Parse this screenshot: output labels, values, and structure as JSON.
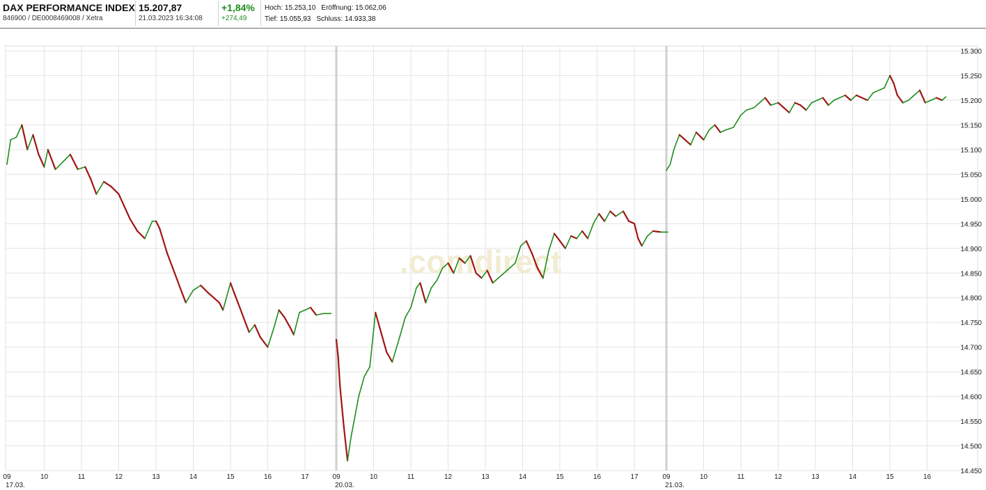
{
  "header": {
    "instrument_name": "DAX PERFORMANCE INDEX",
    "instrument_ids": "846900 / DE0008469008 / Xetra",
    "price": "15.207,87",
    "datetime": "21.03.2023 16:34:08",
    "change_percent": "+1,84%",
    "change_abs": "+274,49",
    "high_label": "Hoch:",
    "high_value": "15.253,10",
    "open_label": "Eröffnung:",
    "open_value": "15.062,06",
    "low_label": "Tief:",
    "low_value": "15.055,93",
    "close_label": "Schluss:",
    "close_value": "14.933,38",
    "positive_color": "#1e8c1e"
  },
  "watermark": ".comdirect",
  "chart_data": {
    "type": "line",
    "subtype": "ohlc-candlestick-intraday",
    "title": "",
    "xlabel": "",
    "ylabel": "",
    "ylim": [
      14450,
      15310
    ],
    "y_ticks": [
      "15.300",
      "15.250",
      "15.200",
      "15.150",
      "15.100",
      "15.050",
      "15.000",
      "14.950",
      "14.900",
      "14.850",
      "14.800",
      "14.750",
      "14.700",
      "14.650",
      "14.600",
      "14.550",
      "14.500",
      "14.450"
    ],
    "y_tick_values": [
      15300,
      15250,
      15200,
      15150,
      15100,
      15050,
      15000,
      14950,
      14900,
      14850,
      14800,
      14750,
      14700,
      14650,
      14600,
      14550,
      14500,
      14450
    ],
    "grid": true,
    "up_color": "#1e8c1e",
    "down_color": "#a01414",
    "sessions": [
      {
        "date_label": "17.03.",
        "hour_labels": [
          "09",
          "10",
          "11",
          "12",
          "13",
          "14",
          "15",
          "16",
          "17"
        ],
        "series": [
          {
            "t": 9.0,
            "v": 15070
          },
          {
            "t": 9.1,
            "v": 15120
          },
          {
            "t": 9.25,
            "v": 15125
          },
          {
            "t": 9.4,
            "v": 15150
          },
          {
            "t": 9.55,
            "v": 15100
          },
          {
            "t": 9.7,
            "v": 15130
          },
          {
            "t": 9.85,
            "v": 15090
          },
          {
            "t": 10.0,
            "v": 15065
          },
          {
            "t": 10.1,
            "v": 15100
          },
          {
            "t": 10.3,
            "v": 15060
          },
          {
            "t": 10.5,
            "v": 15075
          },
          {
            "t": 10.7,
            "v": 15090
          },
          {
            "t": 10.9,
            "v": 15060
          },
          {
            "t": 11.1,
            "v": 15065
          },
          {
            "t": 11.25,
            "v": 15040
          },
          {
            "t": 11.4,
            "v": 15010
          },
          {
            "t": 11.6,
            "v": 15035
          },
          {
            "t": 11.8,
            "v": 15025
          },
          {
            "t": 12.0,
            "v": 15010
          },
          {
            "t": 12.15,
            "v": 14985
          },
          {
            "t": 12.3,
            "v": 14960
          },
          {
            "t": 12.5,
            "v": 14935
          },
          {
            "t": 12.7,
            "v": 14920
          },
          {
            "t": 12.9,
            "v": 14955
          },
          {
            "t": 13.0,
            "v": 14955
          },
          {
            "t": 13.1,
            "v": 14940
          },
          {
            "t": 13.3,
            "v": 14890
          },
          {
            "t": 13.5,
            "v": 14850
          },
          {
            "t": 13.7,
            "v": 14810
          },
          {
            "t": 13.8,
            "v": 14790
          },
          {
            "t": 14.0,
            "v": 14815
          },
          {
            "t": 14.2,
            "v": 14825
          },
          {
            "t": 14.4,
            "v": 14810
          },
          {
            "t": 14.55,
            "v": 14800
          },
          {
            "t": 14.7,
            "v": 14790
          },
          {
            "t": 14.8,
            "v": 14775
          },
          {
            "t": 15.0,
            "v": 14830
          },
          {
            "t": 15.1,
            "v": 14810
          },
          {
            "t": 15.2,
            "v": 14790
          },
          {
            "t": 15.35,
            "v": 14760
          },
          {
            "t": 15.5,
            "v": 14730
          },
          {
            "t": 15.65,
            "v": 14745
          },
          {
            "t": 15.8,
            "v": 14720
          },
          {
            "t": 16.0,
            "v": 14700
          },
          {
            "t": 16.15,
            "v": 14735
          },
          {
            "t": 16.3,
            "v": 14775
          },
          {
            "t": 16.45,
            "v": 14760
          },
          {
            "t": 16.6,
            "v": 14740
          },
          {
            "t": 16.7,
            "v": 14725
          },
          {
            "t": 16.85,
            "v": 14770
          },
          {
            "t": 17.0,
            "v": 14775
          },
          {
            "t": 17.15,
            "v": 14780
          },
          {
            "t": 17.3,
            "v": 14765
          },
          {
            "t": 17.5,
            "v": 14768
          },
          {
            "t": 17.7,
            "v": 14768
          }
        ]
      },
      {
        "date_label": "20.03.",
        "hour_labels": [
          "09",
          "10",
          "11",
          "12",
          "13",
          "14",
          "15",
          "16",
          "17"
        ],
        "series": [
          {
            "t": 9.0,
            "v": 14715
          },
          {
            "t": 9.05,
            "v": 14680
          },
          {
            "t": 9.1,
            "v": 14620
          },
          {
            "t": 9.2,
            "v": 14540
          },
          {
            "t": 9.3,
            "v": 14470
          },
          {
            "t": 9.4,
            "v": 14520
          },
          {
            "t": 9.5,
            "v": 14560
          },
          {
            "t": 9.6,
            "v": 14600
          },
          {
            "t": 9.75,
            "v": 14640
          },
          {
            "t": 9.9,
            "v": 14660
          },
          {
            "t": 10.05,
            "v": 14770
          },
          {
            "t": 10.2,
            "v": 14730
          },
          {
            "t": 10.35,
            "v": 14690
          },
          {
            "t": 10.5,
            "v": 14670
          },
          {
            "t": 10.7,
            "v": 14720
          },
          {
            "t": 10.85,
            "v": 14760
          },
          {
            "t": 11.0,
            "v": 14780
          },
          {
            "t": 11.15,
            "v": 14820
          },
          {
            "t": 11.25,
            "v": 14830
          },
          {
            "t": 11.4,
            "v": 14790
          },
          {
            "t": 11.55,
            "v": 14820
          },
          {
            "t": 11.7,
            "v": 14835
          },
          {
            "t": 11.85,
            "v": 14860
          },
          {
            "t": 12.0,
            "v": 14870
          },
          {
            "t": 12.15,
            "v": 14850
          },
          {
            "t": 12.3,
            "v": 14880
          },
          {
            "t": 12.45,
            "v": 14870
          },
          {
            "t": 12.6,
            "v": 14885
          },
          {
            "t": 12.75,
            "v": 14850
          },
          {
            "t": 12.9,
            "v": 14840
          },
          {
            "t": 13.05,
            "v": 14855
          },
          {
            "t": 13.2,
            "v": 14830
          },
          {
            "t": 13.35,
            "v": 14840
          },
          {
            "t": 13.5,
            "v": 14850
          },
          {
            "t": 13.65,
            "v": 14860
          },
          {
            "t": 13.8,
            "v": 14870
          },
          {
            "t": 13.95,
            "v": 14905
          },
          {
            "t": 14.1,
            "v": 14915
          },
          {
            "t": 14.25,
            "v": 14890
          },
          {
            "t": 14.4,
            "v": 14860
          },
          {
            "t": 14.55,
            "v": 14840
          },
          {
            "t": 14.7,
            "v": 14895
          },
          {
            "t": 14.85,
            "v": 14930
          },
          {
            "t": 15.0,
            "v": 14915
          },
          {
            "t": 15.15,
            "v": 14900
          },
          {
            "t": 15.3,
            "v": 14925
          },
          {
            "t": 15.45,
            "v": 14920
          },
          {
            "t": 15.6,
            "v": 14935
          },
          {
            "t": 15.75,
            "v": 14920
          },
          {
            "t": 15.9,
            "v": 14950
          },
          {
            "t": 16.05,
            "v": 14970
          },
          {
            "t": 16.2,
            "v": 14955
          },
          {
            "t": 16.35,
            "v": 14975
          },
          {
            "t": 16.5,
            "v": 14965
          },
          {
            "t": 16.7,
            "v": 14975
          },
          {
            "t": 16.85,
            "v": 14955
          },
          {
            "t": 17.0,
            "v": 14950
          },
          {
            "t": 17.1,
            "v": 14920
          },
          {
            "t": 17.2,
            "v": 14905
          },
          {
            "t": 17.35,
            "v": 14925
          },
          {
            "t": 17.5,
            "v": 14935
          },
          {
            "t": 17.7,
            "v": 14933
          },
          {
            "t": 17.9,
            "v": 14933
          }
        ]
      },
      {
        "date_label": "21.03.",
        "hour_labels": [
          "09",
          "10",
          "11",
          "12",
          "13",
          "14",
          "15",
          "16"
        ],
        "series": [
          {
            "t": 9.0,
            "v": 15058
          },
          {
            "t": 9.1,
            "v": 15070
          },
          {
            "t": 9.2,
            "v": 15100
          },
          {
            "t": 9.35,
            "v": 15130
          },
          {
            "t": 9.5,
            "v": 15120
          },
          {
            "t": 9.65,
            "v": 15110
          },
          {
            "t": 9.8,
            "v": 15135
          },
          {
            "t": 10.0,
            "v": 15120
          },
          {
            "t": 10.15,
            "v": 15140
          },
          {
            "t": 10.3,
            "v": 15150
          },
          {
            "t": 10.45,
            "v": 15135
          },
          {
            "t": 10.6,
            "v": 15140
          },
          {
            "t": 10.8,
            "v": 15145
          },
          {
            "t": 11.0,
            "v": 15170
          },
          {
            "t": 11.15,
            "v": 15180
          },
          {
            "t": 11.35,
            "v": 15185
          },
          {
            "t": 11.5,
            "v": 15195
          },
          {
            "t": 11.65,
            "v": 15205
          },
          {
            "t": 11.8,
            "v": 15190
          },
          {
            "t": 12.0,
            "v": 15195
          },
          {
            "t": 12.15,
            "v": 15185
          },
          {
            "t": 12.3,
            "v": 15175
          },
          {
            "t": 12.45,
            "v": 15195
          },
          {
            "t": 12.6,
            "v": 15190
          },
          {
            "t": 12.75,
            "v": 15180
          },
          {
            "t": 12.9,
            "v": 15195
          },
          {
            "t": 13.05,
            "v": 15200
          },
          {
            "t": 13.2,
            "v": 15205
          },
          {
            "t": 13.35,
            "v": 15190
          },
          {
            "t": 13.5,
            "v": 15200
          },
          {
            "t": 13.65,
            "v": 15205
          },
          {
            "t": 13.8,
            "v": 15210
          },
          {
            "t": 13.95,
            "v": 15200
          },
          {
            "t": 14.1,
            "v": 15210
          },
          {
            "t": 14.25,
            "v": 15205
          },
          {
            "t": 14.4,
            "v": 15200
          },
          {
            "t": 14.55,
            "v": 15215
          },
          {
            "t": 14.7,
            "v": 15220
          },
          {
            "t": 14.85,
            "v": 15225
          },
          {
            "t": 15.0,
            "v": 15250
          },
          {
            "t": 15.1,
            "v": 15235
          },
          {
            "t": 15.2,
            "v": 15210
          },
          {
            "t": 15.35,
            "v": 15195
          },
          {
            "t": 15.5,
            "v": 15200
          },
          {
            "t": 15.65,
            "v": 15210
          },
          {
            "t": 15.8,
            "v": 15220
          },
          {
            "t": 15.95,
            "v": 15195
          },
          {
            "t": 16.1,
            "v": 15200
          },
          {
            "t": 16.25,
            "v": 15205
          },
          {
            "t": 16.4,
            "v": 15200
          },
          {
            "t": 16.5,
            "v": 15207
          }
        ]
      }
    ]
  }
}
